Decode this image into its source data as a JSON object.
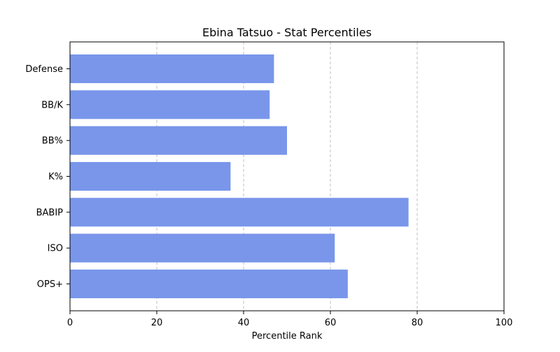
{
  "chart_data": {
    "type": "bar",
    "orientation": "horizontal",
    "title": "Ebina Tatsuo - Stat Percentiles",
    "xlabel": "Percentile Rank",
    "ylabel": "",
    "categories": [
      "OPS+",
      "ISO",
      "BABIP",
      "K%",
      "BB%",
      "BB/K",
      "Defense"
    ],
    "values": [
      64,
      61,
      78,
      37,
      50,
      46,
      47
    ],
    "xlim": [
      0,
      100
    ],
    "xticks": [
      "0",
      "20",
      "40",
      "60",
      "80",
      "100"
    ],
    "grid": "x-axis dashed",
    "legend": "none",
    "bar_color": "#7996ea"
  }
}
